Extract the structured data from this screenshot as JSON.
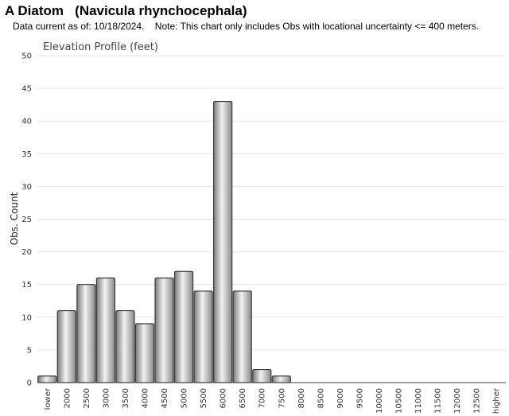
{
  "header": {
    "title": "A Diatom   (Navicula rhynchocephala)",
    "note": "Data current as of: 10/18/2024.    Note: This chart only includes Obs with locational uncertainty <= 400 meters."
  },
  "colors": {
    "bar_fill_dark": "#7a7a7a",
    "bar_fill_light": "#f2f2f2",
    "bar_stroke": "#3a3a3a",
    "grid": "#e4e4e4"
  },
  "chart_data": {
    "type": "bar",
    "title": "Elevation Profile (feet)",
    "xlabel": "",
    "ylabel": "Obs. Count",
    "ylim": [
      0,
      50
    ],
    "yticks": [
      0,
      5,
      10,
      15,
      20,
      25,
      30,
      35,
      40,
      45,
      50
    ],
    "grid": true,
    "categories": [
      "lower",
      "2000",
      "2500",
      "3000",
      "3500",
      "4000",
      "4500",
      "5000",
      "5500",
      "6000",
      "6500",
      "7000",
      "7500",
      "8000",
      "8500",
      "9000",
      "9500",
      "10000",
      "10500",
      "11000",
      "11500",
      "12000",
      "12500",
      "higher"
    ],
    "values": [
      1,
      11,
      15,
      16,
      11,
      9,
      16,
      17,
      14,
      43,
      14,
      2,
      1,
      0,
      0,
      0,
      0,
      0,
      0,
      0,
      0,
      0,
      0,
      0
    ]
  }
}
